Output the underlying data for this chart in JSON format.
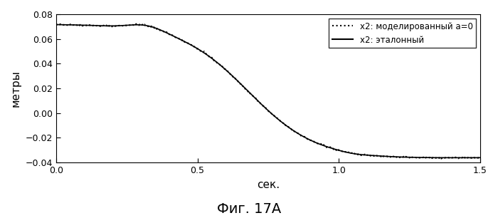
{
  "title": "Фиг. 17А",
  "xlabel": "сек.",
  "ylabel": "метры",
  "xlim": [
    0,
    1.5
  ],
  "ylim": [
    -0.04,
    0.08
  ],
  "yticks": [
    -0.04,
    -0.02,
    0,
    0.02,
    0.04,
    0.06,
    0.08
  ],
  "xticks": [
    0,
    0.5,
    1.0,
    1.5
  ],
  "legend": [
    {
      "label": "x2: моделированный а=0",
      "style": "dotted",
      "color": "#000000"
    },
    {
      "label": "x2: эталонный",
      "style": "solid",
      "color": "#000000"
    }
  ],
  "line_color": "#000000",
  "bg_color": "#ffffff",
  "figsize": [
    7.0,
    3.06
  ],
  "dpi": 100
}
